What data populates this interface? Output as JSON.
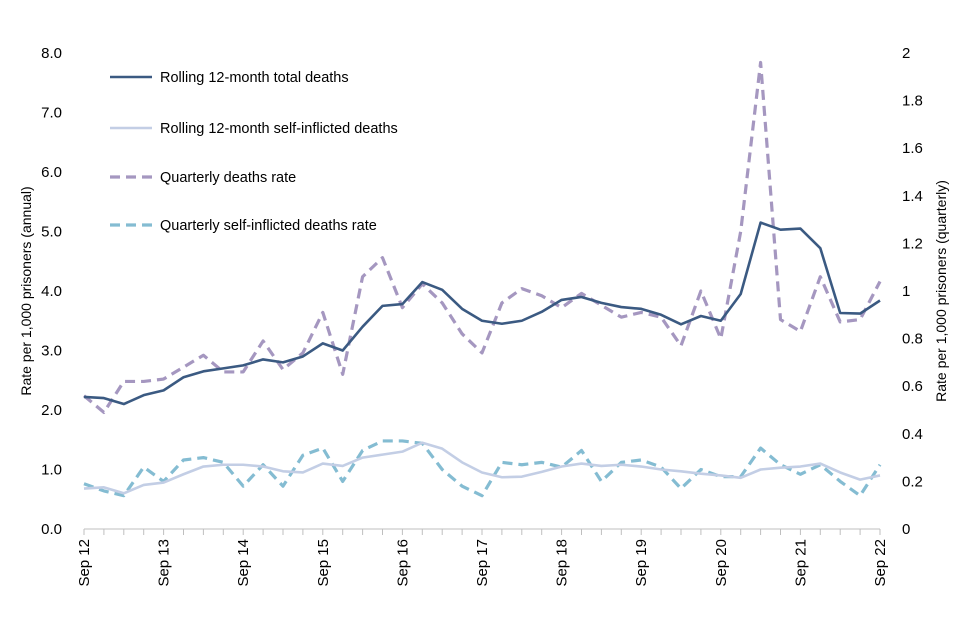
{
  "chart_data": {
    "type": "line",
    "title": "",
    "xlabel": "",
    "ylabel": "Rate per 1,000 prisoners (annual)",
    "ylabel_right": "Rate per 1,000 prisoners (quarterly)",
    "ylim": [
      0,
      8
    ],
    "ylim_right": [
      0,
      2
    ],
    "y_ticks": [
      "0.0",
      "1.0",
      "2.0",
      "3.0",
      "4.0",
      "5.0",
      "6.0",
      "7.0",
      "8.0"
    ],
    "y_ticks_right": [
      "0",
      "0.2",
      "0.4",
      "0.6",
      "0.8",
      "1",
      "1.2",
      "1.4",
      "1.6",
      "1.8",
      "2"
    ],
    "x_tick_labels": [
      "Sep 12",
      "Sep 13",
      "Sep 14",
      "Sep 15",
      "Sep 16",
      "Sep 17",
      "Sep 18",
      "Sep 19",
      "Sep 20",
      "Sep 21",
      "Sep 22"
    ],
    "x_tick_positions": [
      0,
      4,
      8,
      12,
      16,
      20,
      24,
      28,
      32,
      36,
      40
    ],
    "series": [
      {
        "name": "Rolling 12-month total deaths",
        "axis": "left",
        "style": "solid",
        "color": "#3b5a82",
        "values": [
          2.22,
          2.2,
          2.1,
          2.25,
          2.33,
          2.55,
          2.65,
          2.7,
          2.75,
          2.85,
          2.8,
          2.9,
          3.12,
          3.0,
          3.4,
          3.75,
          3.78,
          4.15,
          4.02,
          3.7,
          3.5,
          3.45,
          3.5,
          3.65,
          3.85,
          3.9,
          3.8,
          3.73,
          3.7,
          3.6,
          3.44,
          3.58,
          3.5,
          3.95,
          5.15,
          5.03,
          5.05,
          4.72,
          3.63,
          3.62,
          3.84
        ]
      },
      {
        "name": "Rolling 12-month self-inflicted deaths",
        "axis": "left",
        "style": "solid",
        "color": "#c3cee5",
        "values": [
          0.68,
          0.7,
          0.6,
          0.74,
          0.78,
          0.92,
          1.05,
          1.08,
          1.08,
          1.05,
          0.97,
          0.95,
          1.1,
          1.06,
          1.2,
          1.25,
          1.3,
          1.45,
          1.35,
          1.12,
          0.95,
          0.87,
          0.88,
          0.96,
          1.05,
          1.1,
          1.06,
          1.08,
          1.05,
          1.0,
          0.97,
          0.93,
          0.9,
          0.86,
          1.0,
          1.03,
          1.05,
          1.1,
          0.95,
          0.83,
          0.9
        ]
      },
      {
        "name": "Quarterly deaths rate",
        "axis": "right",
        "style": "dashed",
        "color": "#a597c0",
        "values": [
          0.56,
          0.49,
          0.62,
          0.62,
          0.63,
          0.68,
          0.73,
          0.66,
          0.66,
          0.79,
          0.67,
          0.74,
          0.91,
          0.65,
          1.06,
          1.14,
          0.93,
          1.03,
          0.95,
          0.82,
          0.74,
          0.95,
          1.01,
          0.98,
          0.93,
          0.99,
          0.94,
          0.89,
          0.91,
          0.89,
          0.77,
          1.0,
          0.8,
          1.25,
          1.96,
          0.88,
          0.83,
          1.06,
          0.87,
          0.88,
          1.04
        ]
      },
      {
        "name": "Quarterly self-inflicted deaths rate",
        "axis": "right",
        "style": "dashed",
        "color": "#84bcd2",
        "values": [
          0.19,
          0.16,
          0.14,
          0.26,
          0.2,
          0.29,
          0.3,
          0.28,
          0.18,
          0.27,
          0.18,
          0.31,
          0.34,
          0.2,
          0.33,
          0.37,
          0.37,
          0.36,
          0.25,
          0.18,
          0.14,
          0.28,
          0.27,
          0.28,
          0.26,
          0.33,
          0.2,
          0.28,
          0.29,
          0.26,
          0.17,
          0.25,
          0.22,
          0.22,
          0.34,
          0.27,
          0.23,
          0.27,
          0.2,
          0.14,
          0.27
        ]
      }
    ]
  }
}
